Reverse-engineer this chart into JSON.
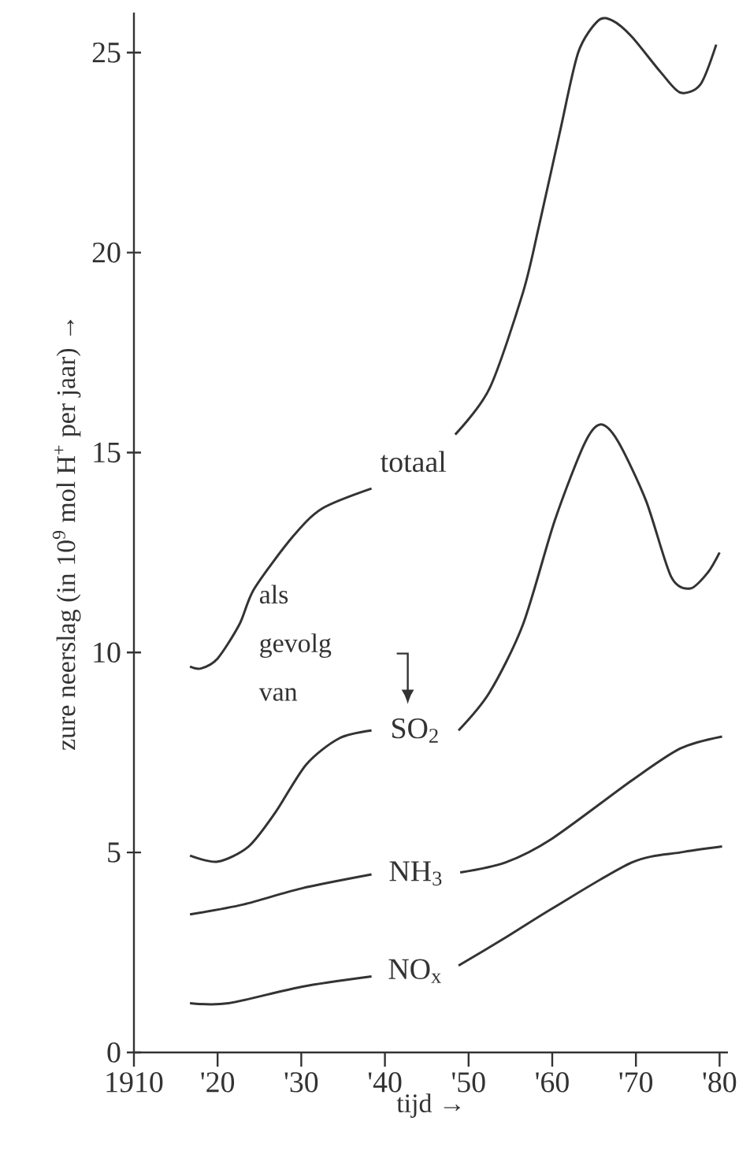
{
  "chart_data": {
    "type": "line",
    "xlabel": "tijd →",
    "ylabel": "zure neerslag (in 10$^{9}$ mol H$^{+}$ per jaar) →",
    "xlim": [
      1910,
      1981
    ],
    "ylim": [
      0,
      26
    ],
    "xticks": [
      1910,
      {
        "value": 1920,
        "label": "'20"
      },
      {
        "value": 1930,
        "label": "'30"
      },
      {
        "value": 1940,
        "label": "'40"
      },
      {
        "value": 1950,
        "label": "'50"
      },
      {
        "value": 1960,
        "label": "'60"
      },
      {
        "value": 1970,
        "label": "'70"
      },
      {
        "value": 1980,
        "label": "'80"
      }
    ],
    "yticks": [
      0,
      5,
      10,
      15,
      20,
      25
    ],
    "annotations": [
      "als gevolg van"
    ],
    "series": [
      {
        "name": "totaal",
        "color": "#333333",
        "x": [
          1916.7,
          1918,
          1920,
          1922.6,
          1924.4,
          1929,
          1932.5,
          1938.4,
          1943,
          1948.4,
          1952.5,
          1956.5,
          1958.4,
          1960.9,
          1963.1,
          1965.5,
          1967.2,
          1969.5,
          1973,
          1975.3,
          1977.7,
          1979.6
        ],
        "values": [
          9.65,
          9.6,
          9.85,
          10.7,
          11.6,
          12.9,
          13.6,
          14.1,
          null,
          15.45,
          16.6,
          19.0,
          20.65,
          23.0,
          25.0,
          25.8,
          25.8,
          25.4,
          24.5,
          24.0,
          24.2,
          25.2
        ]
      },
      {
        "name": "SO$_{2}$",
        "color": "#333333",
        "x": [
          1916.7,
          1920,
          1923.7,
          1926.9,
          1930.6,
          1934.5,
          1938.4,
          1943,
          1948.8,
          1952.5,
          1956.5,
          1960.3,
          1963.8,
          1965.7,
          1967.8,
          1971.2,
          1974.2,
          1976.5,
          1978.6,
          1980
        ],
        "values": [
          4.92,
          4.77,
          5.15,
          6.0,
          7.2,
          7.85,
          8.05,
          null,
          8.05,
          9.0,
          10.7,
          13.3,
          15.2,
          15.7,
          15.3,
          13.8,
          11.9,
          11.6,
          12.0,
          12.5
        ]
      },
      {
        "name": "NH$_{3}$",
        "color": "#333333",
        "x": [
          1916.7,
          1923.1,
          1930,
          1938.4,
          1943,
          1949,
          1954.4,
          1960,
          1969.5,
          1975.3,
          1980.3
        ],
        "values": [
          3.45,
          3.7,
          4.1,
          4.45,
          null,
          4.5,
          4.75,
          5.35,
          6.8,
          7.6,
          7.9
        ]
      },
      {
        "name": "NO$_{x}$",
        "color": "#333333",
        "x": [
          1916.7,
          1921.3,
          1930,
          1938.4,
          1943,
          1948.8,
          1954.4,
          1960,
          1969.5,
          1975.3,
          1980.3
        ],
        "values": [
          1.23,
          1.23,
          1.64,
          1.9,
          null,
          2.17,
          2.87,
          3.6,
          4.75,
          5.0,
          5.15
        ]
      }
    ]
  }
}
